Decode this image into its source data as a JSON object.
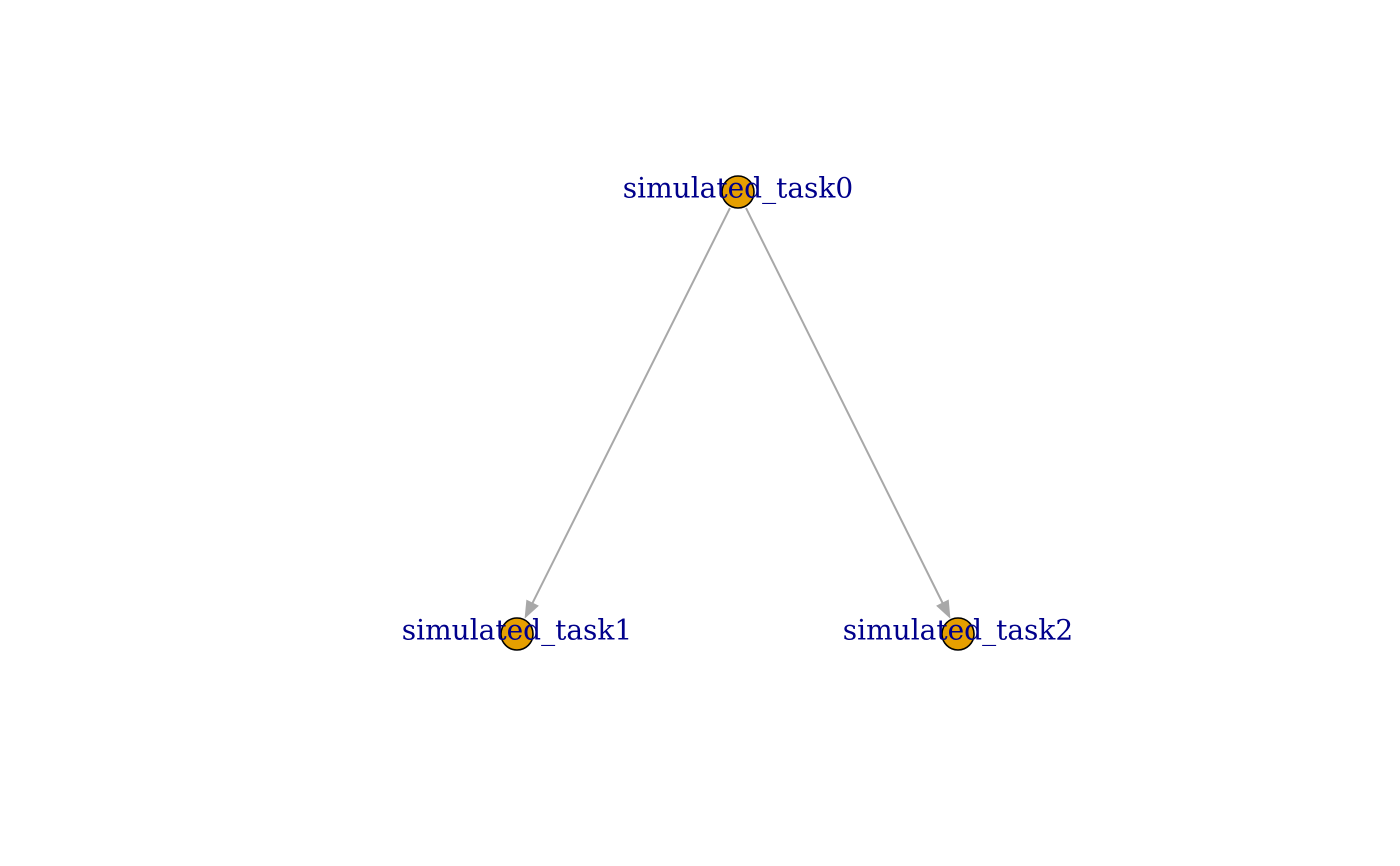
{
  "graph": {
    "directed": true,
    "colors": {
      "node_fill": "#E69F00",
      "node_border": "#000000",
      "edge": "#A8A8A8",
      "label": "#00008B",
      "background": "#FFFFFF"
    },
    "nodes": [
      {
        "id": "n0",
        "label": "simulated_task0"
      },
      {
        "id": "n1",
        "label": "simulated_task1"
      },
      {
        "id": "n2",
        "label": "simulated_task2"
      }
    ],
    "edges": [
      {
        "from": "n0",
        "to": "n1"
      },
      {
        "from": "n0",
        "to": "n2"
      }
    ]
  }
}
